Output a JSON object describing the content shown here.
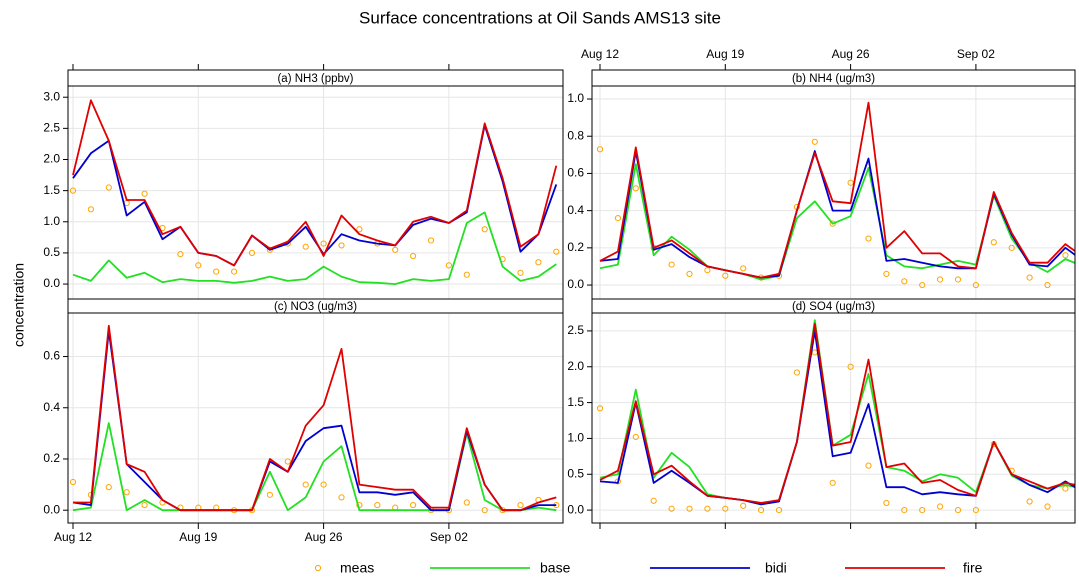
{
  "title": "Surface concentrations at Oil Sands AMS13 site",
  "ylabel": "concentration",
  "chart_data": [
    {
      "type": "line",
      "title": "(a) NH3 (ppbv)",
      "x": [
        "Aug 12",
        "Aug 13",
        "Aug 14",
        "Aug 15",
        "Aug 16",
        "Aug 17",
        "Aug 18",
        "Aug 19",
        "Aug 20",
        "Aug 21",
        "Aug 22",
        "Aug 23",
        "Aug 24",
        "Aug 25",
        "Aug 26",
        "Aug 27",
        "Aug 28",
        "Aug 29",
        "Aug 30",
        "Aug 31",
        "Sep 01",
        "Sep 02",
        "Sep 03",
        "Sep 04",
        "Sep 05",
        "Sep 06",
        "Sep 07",
        "Sep 08"
      ],
      "xticks": [
        "Aug 12",
        "Aug 19",
        "Aug 26",
        "Sep 02"
      ],
      "ylim": [
        -0.24,
        3.18
      ],
      "yticks": [
        {
          "value": 0,
          "label": "0.0"
        },
        0.5,
        {
          "value": 1,
          "label": "1.0"
        },
        1.5,
        {
          "value": 2,
          "label": "2.0"
        },
        2.5,
        {
          "value": 3,
          "label": "3.0"
        }
      ],
      "grid": true,
      "series": [
        {
          "name": "meas",
          "color": "#ffa500",
          "marker": "circle",
          "values": [
            1.5,
            1.2,
            1.55,
            1.3,
            1.45,
            0.9,
            0.48,
            0.3,
            0.2,
            0.2,
            0.5,
            0.55,
            0.65,
            0.6,
            0.65,
            0.62,
            0.88,
            0.65,
            0.55,
            0.45,
            0.7,
            0.3,
            0.15,
            0.88,
            0.4,
            0.18,
            0.35,
            0.52
          ]
        },
        {
          "name": "base",
          "color": "#22e022",
          "values": [
            0.15,
            0.05,
            0.38,
            0.1,
            0.18,
            0.03,
            0.08,
            0.05,
            0.05,
            0.02,
            0.05,
            0.12,
            0.05,
            0.08,
            0.28,
            0.12,
            0.03,
            0.02,
            0.0,
            0.08,
            0.05,
            0.08,
            0.98,
            1.15,
            0.28,
            0.05,
            0.12,
            0.32
          ]
        },
        {
          "name": "bidi",
          "color": "#0000d0",
          "values": [
            1.7,
            2.1,
            2.3,
            1.1,
            1.32,
            0.72,
            0.92,
            0.5,
            0.45,
            0.3,
            0.78,
            0.55,
            0.65,
            0.92,
            0.48,
            0.8,
            0.7,
            0.65,
            0.62,
            0.95,
            1.05,
            0.98,
            1.15,
            2.55,
            1.65,
            0.52,
            0.8,
            1.6
          ]
        },
        {
          "name": "fire",
          "color": "#e00000",
          "values": [
            1.75,
            2.95,
            2.3,
            1.35,
            1.35,
            0.8,
            0.92,
            0.5,
            0.45,
            0.3,
            0.78,
            0.57,
            0.68,
            1.0,
            0.45,
            1.1,
            0.8,
            0.7,
            0.62,
            1.0,
            1.08,
            0.98,
            1.18,
            2.58,
            1.7,
            0.6,
            0.8,
            1.9
          ]
        }
      ]
    },
    {
      "type": "line",
      "title": "(b) NH4 (ug/m3)",
      "x": [
        "Aug 12",
        "Aug 13",
        "Aug 14",
        "Aug 15",
        "Aug 16",
        "Aug 17",
        "Aug 18",
        "Aug 19",
        "Aug 20",
        "Aug 21",
        "Aug 22",
        "Aug 23",
        "Aug 24",
        "Aug 25",
        "Aug 26",
        "Aug 27",
        "Aug 28",
        "Aug 29",
        "Aug 30",
        "Aug 31",
        "Sep 01",
        "Sep 02",
        "Sep 03",
        "Sep 04",
        "Sep 05",
        "Sep 06",
        "Sep 07",
        "Sep 08"
      ],
      "xticks": [
        "Aug 12",
        "Aug 19",
        "Aug 26",
        "Sep 02"
      ],
      "ylim": [
        -0.075,
        1.07
      ],
      "yticks": [
        {
          "value": 0,
          "label": "0.0"
        },
        0.2,
        0.4,
        0.6,
        0.8,
        {
          "value": 1,
          "label": "1.0"
        }
      ],
      "grid": true,
      "series": [
        {
          "name": "meas",
          "color": "#ffa500",
          "marker": "circle",
          "values": [
            0.73,
            0.36,
            0.52,
            0.2,
            0.11,
            0.06,
            0.08,
            0.05,
            0.09,
            0.04,
            0.05,
            0.42,
            0.77,
            0.33,
            0.55,
            0.25,
            0.06,
            0.02,
            0.0,
            0.03,
            0.03,
            0.0,
            0.23,
            0.2,
            0.04,
            0.0,
            0.16,
            0.12
          ]
        },
        {
          "name": "base",
          "color": "#22e022",
          "values": [
            0.09,
            0.11,
            0.65,
            0.16,
            0.26,
            0.19,
            0.1,
            0.08,
            0.06,
            0.03,
            0.05,
            0.36,
            0.45,
            0.33,
            0.37,
            0.63,
            0.16,
            0.1,
            0.09,
            0.11,
            0.13,
            0.11,
            0.48,
            0.25,
            0.12,
            0.07,
            0.14,
            0.1
          ]
        },
        {
          "name": "bidi",
          "color": "#0000d0",
          "values": [
            0.13,
            0.14,
            0.72,
            0.19,
            0.22,
            0.15,
            0.1,
            0.08,
            0.06,
            0.04,
            0.05,
            0.4,
            0.72,
            0.4,
            0.4,
            0.68,
            0.13,
            0.14,
            0.12,
            0.1,
            0.09,
            0.09,
            0.49,
            0.27,
            0.11,
            0.1,
            0.2,
            0.13
          ]
        },
        {
          "name": "fire",
          "color": "#e00000",
          "values": [
            0.13,
            0.18,
            0.74,
            0.2,
            0.24,
            0.17,
            0.1,
            0.08,
            0.06,
            0.04,
            0.06,
            0.4,
            0.71,
            0.45,
            0.44,
            0.98,
            0.2,
            0.29,
            0.17,
            0.17,
            0.1,
            0.09,
            0.5,
            0.28,
            0.12,
            0.12,
            0.22,
            0.15
          ]
        }
      ]
    },
    {
      "type": "line",
      "title": "(c) NO3 (ug/m3)",
      "x": [
        "Aug 12",
        "Aug 13",
        "Aug 14",
        "Aug 15",
        "Aug 16",
        "Aug 17",
        "Aug 18",
        "Aug 19",
        "Aug 20",
        "Aug 21",
        "Aug 22",
        "Aug 23",
        "Aug 24",
        "Aug 25",
        "Aug 26",
        "Aug 27",
        "Aug 28",
        "Aug 29",
        "Aug 30",
        "Aug 31",
        "Sep 01",
        "Sep 02",
        "Sep 03",
        "Sep 04",
        "Sep 05",
        "Sep 06",
        "Sep 07",
        "Sep 08"
      ],
      "xticks": [
        "Aug 12",
        "Aug 19",
        "Aug 26",
        "Sep 02"
      ],
      "ylim": [
        -0.05,
        0.77
      ],
      "yticks": [
        {
          "value": 0,
          "label": "0.0"
        },
        0.2,
        0.4,
        0.6
      ],
      "grid": true,
      "series": [
        {
          "name": "meas",
          "color": "#ffa500",
          "marker": "circle",
          "values": [
            0.11,
            0.06,
            0.09,
            0.07,
            0.02,
            0.03,
            0.01,
            0.01,
            0.01,
            0.0,
            0.0,
            0.06,
            0.19,
            0.1,
            0.1,
            0.05,
            0.02,
            0.02,
            0.01,
            0.02,
            0.0,
            0.0,
            0.03,
            0.0,
            0.0,
            0.02,
            0.04,
            0.02
          ]
        },
        {
          "name": "base",
          "color": "#22e022",
          "values": [
            0.0,
            0.01,
            0.34,
            0.0,
            0.04,
            0.0,
            0.0,
            0.0,
            0.0,
            0.0,
            0.0,
            0.15,
            0.0,
            0.05,
            0.19,
            0.25,
            0.0,
            0.0,
            0.0,
            0.0,
            0.0,
            0.0,
            0.3,
            0.04,
            0.0,
            0.0,
            0.01,
            0.0
          ]
        },
        {
          "name": "bidi",
          "color": "#0000d0",
          "values": [
            0.03,
            0.02,
            0.7,
            0.18,
            0.11,
            0.04,
            0.0,
            0.0,
            0.0,
            0.0,
            0.0,
            0.19,
            0.15,
            0.27,
            0.32,
            0.33,
            0.07,
            0.07,
            0.06,
            0.07,
            0.0,
            0.0,
            0.31,
            0.1,
            0.0,
            0.0,
            0.02,
            0.02
          ]
        },
        {
          "name": "fire",
          "color": "#e00000",
          "values": [
            0.03,
            0.03,
            0.72,
            0.18,
            0.15,
            0.04,
            0.0,
            0.0,
            0.0,
            0.0,
            0.0,
            0.2,
            0.15,
            0.33,
            0.41,
            0.63,
            0.1,
            0.09,
            0.08,
            0.08,
            0.01,
            0.01,
            0.32,
            0.1,
            0.0,
            0.0,
            0.03,
            0.05
          ]
        }
      ]
    },
    {
      "type": "line",
      "title": "(d) SO4 (ug/m3)",
      "x": [
        "Aug 12",
        "Aug 13",
        "Aug 14",
        "Aug 15",
        "Aug 16",
        "Aug 17",
        "Aug 18",
        "Aug 19",
        "Aug 20",
        "Aug 21",
        "Aug 22",
        "Aug 23",
        "Aug 24",
        "Aug 25",
        "Aug 26",
        "Aug 27",
        "Aug 28",
        "Aug 29",
        "Aug 30",
        "Aug 31",
        "Sep 01",
        "Sep 02",
        "Sep 03",
        "Sep 04",
        "Sep 05",
        "Sep 06",
        "Sep 07",
        "Sep 08"
      ],
      "xticks": [
        "Aug 12",
        "Aug 19",
        "Aug 26",
        "Sep 02"
      ],
      "ylim": [
        -0.18,
        2.75
      ],
      "yticks": [
        {
          "value": 0,
          "label": "0.0"
        },
        0.5,
        {
          "value": 1,
          "label": "1.0"
        },
        1.5,
        {
          "value": 2,
          "label": "2.0"
        },
        2.5
      ],
      "grid": true,
      "series": [
        {
          "name": "meas",
          "color": "#ffa500",
          "marker": "circle",
          "values": [
            1.42,
            0.4,
            1.02,
            0.13,
            0.02,
            0.02,
            0.02,
            0.02,
            0.06,
            0.0,
            0.0,
            1.92,
            2.2,
            0.38,
            2.0,
            0.62,
            0.1,
            0.0,
            0.0,
            0.05,
            0.0,
            0.0,
            0.92,
            0.55,
            0.12,
            0.05,
            0.3,
            0.25
          ]
        },
        {
          "name": "base",
          "color": "#22e022",
          "values": [
            0.45,
            0.5,
            1.68,
            0.45,
            0.8,
            0.6,
            0.22,
            0.17,
            0.14,
            0.08,
            0.14,
            0.95,
            2.65,
            0.9,
            1.05,
            1.9,
            0.6,
            0.55,
            0.4,
            0.5,
            0.45,
            0.25,
            0.95,
            0.48,
            0.35,
            0.3,
            0.35,
            0.3
          ]
        },
        {
          "name": "bidi",
          "color": "#0000d0",
          "values": [
            0.4,
            0.38,
            1.5,
            0.38,
            0.55,
            0.38,
            0.2,
            0.17,
            0.14,
            0.08,
            0.12,
            0.95,
            2.5,
            0.75,
            0.8,
            1.48,
            0.32,
            0.32,
            0.22,
            0.25,
            0.22,
            0.2,
            0.95,
            0.5,
            0.35,
            0.25,
            0.4,
            0.25
          ]
        },
        {
          "name": "fire",
          "color": "#e00000",
          "values": [
            0.42,
            0.55,
            1.52,
            0.5,
            0.62,
            0.4,
            0.2,
            0.17,
            0.14,
            0.1,
            0.14,
            0.95,
            2.6,
            0.9,
            0.95,
            2.1,
            0.6,
            0.65,
            0.38,
            0.42,
            0.28,
            0.2,
            0.95,
            0.5,
            0.4,
            0.3,
            0.38,
            0.33
          ]
        }
      ]
    }
  ]
}
